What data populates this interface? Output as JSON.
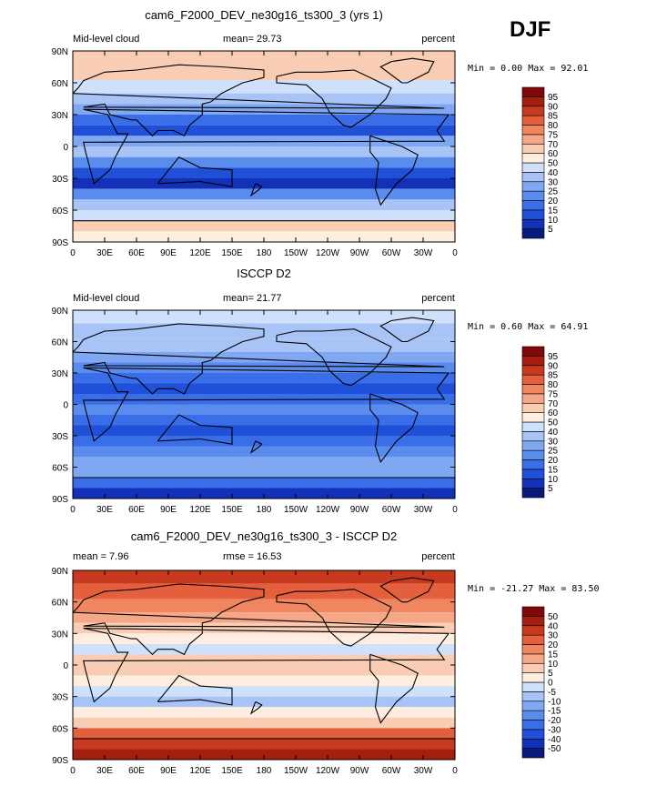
{
  "season": "DJF",
  "x_ticks": [
    "0",
    "30E",
    "60E",
    "90E",
    "120E",
    "150E",
    "180",
    "150W",
    "120W",
    "90W",
    "60W",
    "30W",
    "0"
  ],
  "y_ticks": [
    "90N",
    "60N",
    "30N",
    "0",
    "30S",
    "60S",
    "90S"
  ],
  "colors": {
    "abs": [
      "#0a1a7a",
      "#1230b8",
      "#2050d8",
      "#3a6ee8",
      "#5a8cee",
      "#80a8f2",
      "#a8c4f6",
      "#cfe0fa",
      "#fdeee0",
      "#f9ccb4",
      "#f4a888",
      "#ef8660",
      "#e4603c",
      "#c83a20",
      "#a51e10",
      "#800808"
    ],
    "diff": [
      "#0a1a7a",
      "#1230b8",
      "#2050d8",
      "#3a6ee8",
      "#5a8cee",
      "#80a8f2",
      "#a8c4f6",
      "#cfe0fa",
      "#fdeee0",
      "#f9ccb4",
      "#f4a888",
      "#ef8660",
      "#e4603c",
      "#c83a20",
      "#a51e10",
      "#800808"
    ]
  },
  "chart_data": [
    {
      "type": "heatmap",
      "title": "cam6_F2000_DEV_ne30g16_ts300_3 (yrs 1)",
      "left_label": "Mid-level cloud",
      "center_label": "mean=  29.73",
      "right_label": "percent",
      "stats": "Min =   0.00 Max =  92.01",
      "x_range": [
        0,
        360
      ],
      "y_range": [
        -90,
        90
      ],
      "colorbar_levels": [
        "5",
        "10",
        "15",
        "20",
        "25",
        "30",
        "40",
        "50",
        "60",
        "70",
        "75",
        "80",
        "85",
        "90",
        "95"
      ],
      "palette": "abs",
      "bands": [
        {
          "lat": 85,
          "value": 70
        },
        {
          "lat": 70,
          "value": 62
        },
        {
          "lat": 55,
          "value": 48
        },
        {
          "lat": 45,
          "value": 40
        },
        {
          "lat": 35,
          "value": 30
        },
        {
          "lat": 25,
          "value": 18
        },
        {
          "lat": 15,
          "value": 12
        },
        {
          "lat": 5,
          "value": 28
        },
        {
          "lat": -5,
          "value": 32
        },
        {
          "lat": -15,
          "value": 22
        },
        {
          "lat": -25,
          "value": 12
        },
        {
          "lat": -35,
          "value": 10
        },
        {
          "lat": -45,
          "value": 25
        },
        {
          "lat": -55,
          "value": 40
        },
        {
          "lat": -65,
          "value": 50
        },
        {
          "lat": -75,
          "value": 66
        },
        {
          "lat": -85,
          "value": 60
        }
      ]
    },
    {
      "type": "heatmap",
      "title": "ISCCP D2",
      "left_label": "Mid-level cloud",
      "center_label": "mean=  21.77",
      "right_label": "percent",
      "stats": "Min =   0.60 Max =  64.91",
      "x_range": [
        0,
        360
      ],
      "y_range": [
        -90,
        90
      ],
      "colorbar_levels": [
        "5",
        "10",
        "15",
        "20",
        "25",
        "30",
        "40",
        "50",
        "60",
        "70",
        "75",
        "80",
        "85",
        "90",
        "95"
      ],
      "palette": "abs",
      "bands": [
        {
          "lat": 85,
          "value": 42
        },
        {
          "lat": 70,
          "value": 38
        },
        {
          "lat": 55,
          "value": 32
        },
        {
          "lat": 45,
          "value": 28
        },
        {
          "lat": 35,
          "value": 24
        },
        {
          "lat": 25,
          "value": 16
        },
        {
          "lat": 15,
          "value": 14
        },
        {
          "lat": 5,
          "value": 20
        },
        {
          "lat": -5,
          "value": 22
        },
        {
          "lat": -15,
          "value": 18
        },
        {
          "lat": -25,
          "value": 14
        },
        {
          "lat": -35,
          "value": 16
        },
        {
          "lat": -45,
          "value": 24
        },
        {
          "lat": -55,
          "value": 30
        },
        {
          "lat": -65,
          "value": 30
        },
        {
          "lat": -75,
          "value": 16
        },
        {
          "lat": -85,
          "value": 10
        }
      ]
    },
    {
      "type": "heatmap",
      "title": "cam6_F2000_DEV_ne30g16_ts300_3 - ISCCP D2",
      "left_label": "mean =    7.96",
      "center_label": "rmse =   16.53",
      "right_label": "percent",
      "stats": "Min = -21.27 Max =  83.50",
      "x_range": [
        0,
        360
      ],
      "y_range": [
        -90,
        90
      ],
      "colorbar_levels": [
        "-50",
        "-40",
        "-30",
        "-20",
        "-15",
        "-10",
        "-5",
        "0",
        "5",
        "10",
        "15",
        "20",
        "30",
        "40",
        "50"
      ],
      "palette": "diff",
      "bands": [
        {
          "lat": 85,
          "value": 35
        },
        {
          "lat": 70,
          "value": 30
        },
        {
          "lat": 55,
          "value": 18
        },
        {
          "lat": 45,
          "value": 14
        },
        {
          "lat": 35,
          "value": 8
        },
        {
          "lat": 25,
          "value": 2
        },
        {
          "lat": 15,
          "value": -3
        },
        {
          "lat": 5,
          "value": 8
        },
        {
          "lat": -5,
          "value": 10
        },
        {
          "lat": -15,
          "value": 4
        },
        {
          "lat": -25,
          "value": -3
        },
        {
          "lat": -35,
          "value": -6
        },
        {
          "lat": -45,
          "value": 1
        },
        {
          "lat": -55,
          "value": 10
        },
        {
          "lat": -65,
          "value": 22
        },
        {
          "lat": -75,
          "value": 40
        },
        {
          "lat": -85,
          "value": 45
        }
      ]
    }
  ]
}
